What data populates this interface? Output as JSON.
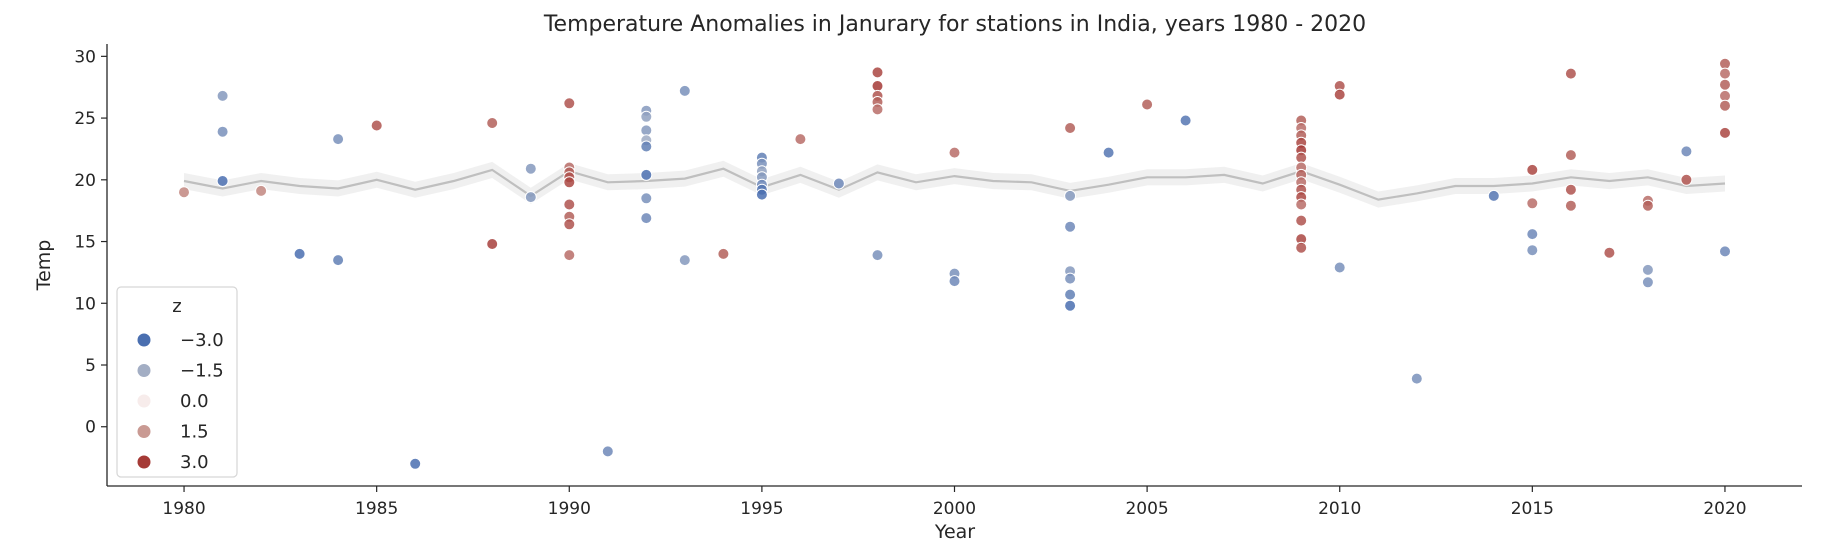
{
  "chart_data": {
    "type": "scatter",
    "title": "Temperature Anomalies in Janurary for stations in India, years 1980 - 2020",
    "xlabel": "Year",
    "ylabel": "Temp",
    "xlim": [
      1978,
      2022
    ],
    "ylim": [
      -4.8,
      31
    ],
    "xticks": [
      "1980",
      "1985",
      "1990",
      "1995",
      "2000",
      "2005",
      "2010",
      "2015",
      "2020"
    ],
    "yticks": [
      "0",
      "5",
      "10",
      "15",
      "20",
      "25",
      "30"
    ],
    "grid": false,
    "legend": {
      "title": "z",
      "placement": "lower-left",
      "entries": [
        {
          "label": "−3.0",
          "color": "#4a6fb0"
        },
        {
          "label": "−1.5",
          "color": "#a3aec4"
        },
        {
          "label": "0.0",
          "color": "#f7eceb"
        },
        {
          "label": "1.5",
          "color": "#c99a93"
        },
        {
          "label": "3.0",
          "color": "#a53a36"
        }
      ]
    },
    "mean_line": {
      "color": "#bfbfbf",
      "band_color": "#ececec",
      "x": [
        1980,
        1981,
        1982,
        1983,
        1984,
        1985,
        1986,
        1987,
        1988,
        1989,
        1990,
        1991,
        1992,
        1993,
        1994,
        1995,
        1996,
        1997,
        1998,
        1999,
        2000,
        2001,
        2002,
        2003,
        2004,
        2005,
        2006,
        2007,
        2008,
        2009,
        2010,
        2011,
        2012,
        2013,
        2014,
        2015,
        2016,
        2017,
        2018,
        2019,
        2020
      ],
      "y": [
        19.9,
        19.3,
        19.9,
        19.5,
        19.3,
        20.0,
        19.2,
        19.9,
        20.8,
        18.7,
        20.7,
        19.8,
        19.9,
        20.1,
        20.9,
        19.4,
        20.4,
        19.2,
        20.6,
        19.8,
        20.3,
        19.9,
        19.8,
        19.1,
        19.6,
        20.2,
        20.2,
        20.4,
        19.7,
        20.7,
        19.6,
        18.4,
        18.9,
        19.5,
        19.5,
        19.7,
        20.2,
        19.9,
        20.2,
        19.5,
        19.7
      ]
    },
    "series": [
      {
        "x": 1980,
        "y": 19.0,
        "z": 1.8
      },
      {
        "x": 1981,
        "y": 26.8,
        "z": -2.0
      },
      {
        "x": 1981,
        "y": 23.9,
        "z": -2.2
      },
      {
        "x": 1981,
        "y": 19.9,
        "z": -3.0
      },
      {
        "x": 1982,
        "y": 19.1,
        "z": 1.8
      },
      {
        "x": 1983,
        "y": 14.0,
        "z": -3.0
      },
      {
        "x": 1984,
        "y": 23.3,
        "z": -2.2
      },
      {
        "x": 1984,
        "y": 13.5,
        "z": -2.6
      },
      {
        "x": 1985,
        "y": 24.4,
        "z": 2.6
      },
      {
        "x": 1986,
        "y": -3.0,
        "z": -3.0
      },
      {
        "x": 1988,
        "y": 24.6,
        "z": 2.4
      },
      {
        "x": 1988,
        "y": 14.8,
        "z": 2.9
      },
      {
        "x": 1989,
        "y": 20.9,
        "z": -2.0
      },
      {
        "x": 1989,
        "y": 18.6,
        "z": -2.0
      },
      {
        "x": 1990,
        "y": 26.2,
        "z": 2.6
      },
      {
        "x": 1990,
        "y": 21.0,
        "z": 2.2
      },
      {
        "x": 1990,
        "y": 20.6,
        "z": 2.4
      },
      {
        "x": 1990,
        "y": 20.2,
        "z": 2.6
      },
      {
        "x": 1990,
        "y": 19.8,
        "z": 2.8
      },
      {
        "x": 1990,
        "y": 18.0,
        "z": 2.6
      },
      {
        "x": 1990,
        "y": 17.0,
        "z": 2.4
      },
      {
        "x": 1990,
        "y": 16.4,
        "z": 2.6
      },
      {
        "x": 1990,
        "y": 13.9,
        "z": 2.2
      },
      {
        "x": 1991,
        "y": -2.0,
        "z": -2.4
      },
      {
        "x": 1992,
        "y": 25.6,
        "z": -2.0
      },
      {
        "x": 1992,
        "y": 25.1,
        "z": -1.8
      },
      {
        "x": 1992,
        "y": 24.0,
        "z": -2.0
      },
      {
        "x": 1992,
        "y": 23.2,
        "z": -1.6
      },
      {
        "x": 1992,
        "y": 22.7,
        "z": -2.6
      },
      {
        "x": 1992,
        "y": 20.4,
        "z": -3.0
      },
      {
        "x": 1992,
        "y": 18.5,
        "z": -2.2
      },
      {
        "x": 1992,
        "y": 16.9,
        "z": -2.4
      },
      {
        "x": 1993,
        "y": 27.2,
        "z": -2.2
      },
      {
        "x": 1993,
        "y": 13.5,
        "z": -2.0
      },
      {
        "x": 1994,
        "y": 14.0,
        "z": 2.4
      },
      {
        "x": 1995,
        "y": 21.8,
        "z": -2.6
      },
      {
        "x": 1995,
        "y": 21.3,
        "z": -2.2
      },
      {
        "x": 1995,
        "y": 20.7,
        "z": -1.8
      },
      {
        "x": 1995,
        "y": 20.2,
        "z": -2.0
      },
      {
        "x": 1995,
        "y": 19.6,
        "z": -2.4
      },
      {
        "x": 1995,
        "y": 19.2,
        "z": -2.8
      },
      {
        "x": 1995,
        "y": 18.8,
        "z": -3.0
      },
      {
        "x": 1996,
        "y": 23.3,
        "z": 2.2
      },
      {
        "x": 1997,
        "y": 19.7,
        "z": -2.4
      },
      {
        "x": 1998,
        "y": 28.7,
        "z": 2.8
      },
      {
        "x": 1998,
        "y": 27.6,
        "z": 3.0
      },
      {
        "x": 1998,
        "y": 26.8,
        "z": 2.6
      },
      {
        "x": 1998,
        "y": 26.3,
        "z": 2.4
      },
      {
        "x": 1998,
        "y": 25.7,
        "z": 2.2
      },
      {
        "x": 1998,
        "y": 13.9,
        "z": -2.2
      },
      {
        "x": 2000,
        "y": 22.2,
        "z": 2.2
      },
      {
        "x": 2000,
        "y": 12.4,
        "z": -2.2
      },
      {
        "x": 2000,
        "y": 11.8,
        "z": -2.4
      },
      {
        "x": 2003,
        "y": 24.2,
        "z": 2.4
      },
      {
        "x": 2003,
        "y": 18.7,
        "z": -2.0
      },
      {
        "x": 2003,
        "y": 16.2,
        "z": -2.4
      },
      {
        "x": 2003,
        "y": 12.6,
        "z": -2.0
      },
      {
        "x": 2003,
        "y": 12.0,
        "z": -2.2
      },
      {
        "x": 2003,
        "y": 10.7,
        "z": -2.6
      },
      {
        "x": 2003,
        "y": 9.8,
        "z": -3.0
      },
      {
        "x": 2004,
        "y": 22.2,
        "z": -2.8
      },
      {
        "x": 2005,
        "y": 26.1,
        "z": 2.4
      },
      {
        "x": 2006,
        "y": 24.8,
        "z": -2.8
      },
      {
        "x": 2009,
        "y": 24.8,
        "z": 2.4
      },
      {
        "x": 2009,
        "y": 24.2,
        "z": 2.2
      },
      {
        "x": 2009,
        "y": 23.6,
        "z": 2.4
      },
      {
        "x": 2009,
        "y": 23.0,
        "z": 2.8
      },
      {
        "x": 2009,
        "y": 22.4,
        "z": 3.0
      },
      {
        "x": 2009,
        "y": 21.8,
        "z": 2.6
      },
      {
        "x": 2009,
        "y": 21.0,
        "z": 2.2
      },
      {
        "x": 2009,
        "y": 20.4,
        "z": 2.4
      },
      {
        "x": 2009,
        "y": 19.8,
        "z": 2.2
      },
      {
        "x": 2009,
        "y": 19.2,
        "z": 2.6
      },
      {
        "x": 2009,
        "y": 18.6,
        "z": 2.8
      },
      {
        "x": 2009,
        "y": 18.0,
        "z": 2.2
      },
      {
        "x": 2009,
        "y": 16.7,
        "z": 2.6
      },
      {
        "x": 2009,
        "y": 15.2,
        "z": 2.8
      },
      {
        "x": 2009,
        "y": 14.5,
        "z": 2.6
      },
      {
        "x": 2010,
        "y": 27.6,
        "z": 2.6
      },
      {
        "x": 2010,
        "y": 26.9,
        "z": 2.8
      },
      {
        "x": 2010,
        "y": 12.9,
        "z": -2.2
      },
      {
        "x": 2012,
        "y": 3.9,
        "z": -2.2
      },
      {
        "x": 2014,
        "y": 18.7,
        "z": -2.8
      },
      {
        "x": 2015,
        "y": 20.8,
        "z": 2.8
      },
      {
        "x": 2015,
        "y": 18.1,
        "z": 2.2
      },
      {
        "x": 2015,
        "y": 15.6,
        "z": -2.4
      },
      {
        "x": 2015,
        "y": 14.3,
        "z": -2.2
      },
      {
        "x": 2016,
        "y": 28.6,
        "z": 2.6
      },
      {
        "x": 2016,
        "y": 22.0,
        "z": 2.4
      },
      {
        "x": 2016,
        "y": 19.2,
        "z": 2.6
      },
      {
        "x": 2016,
        "y": 17.9,
        "z": 2.4
      },
      {
        "x": 2017,
        "y": 14.1,
        "z": 2.6
      },
      {
        "x": 2018,
        "y": 18.3,
        "z": 2.2
      },
      {
        "x": 2018,
        "y": 17.9,
        "z": 2.4
      },
      {
        "x": 2018,
        "y": 12.7,
        "z": -2.0
      },
      {
        "x": 2018,
        "y": 11.7,
        "z": -2.2
      },
      {
        "x": 2019,
        "y": 22.3,
        "z": -2.4
      },
      {
        "x": 2019,
        "y": 20.0,
        "z": 2.6
      },
      {
        "x": 2020,
        "y": 29.4,
        "z": 2.4
      },
      {
        "x": 2020,
        "y": 28.6,
        "z": 2.2
      },
      {
        "x": 2020,
        "y": 27.7,
        "z": 2.4
      },
      {
        "x": 2020,
        "y": 26.8,
        "z": 2.2
      },
      {
        "x": 2020,
        "y": 26.0,
        "z": 2.4
      },
      {
        "x": 2020,
        "y": 23.8,
        "z": 2.8
      },
      {
        "x": 2020,
        "y": 14.2,
        "z": -2.4
      }
    ]
  }
}
